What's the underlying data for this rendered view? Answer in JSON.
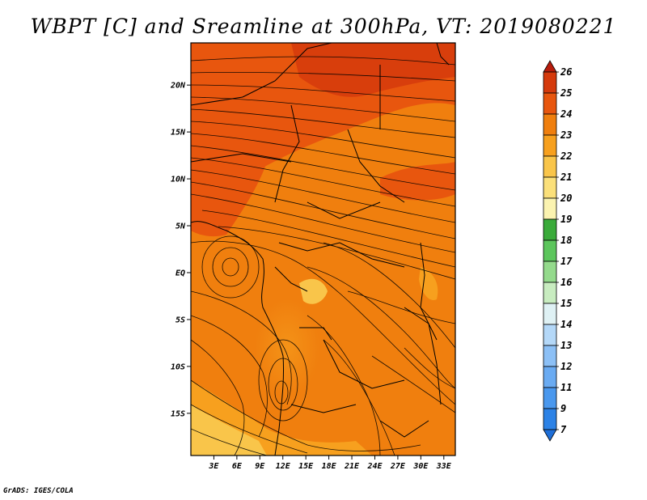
{
  "title": "WBPT [C] and Sreamline at 300hPa, VT: 2019080221",
  "credit": "GrADS: IGES/COLA",
  "map": {
    "lat_labels": [
      "20N",
      "15N",
      "10N",
      "5N",
      "EQ",
      "5S",
      "10S",
      "15S"
    ],
    "lat_values": [
      20,
      15,
      10,
      5,
      0,
      -5,
      -10,
      -15
    ],
    "lon_labels": [
      "3E",
      "6E",
      "9E",
      "12E",
      "15E",
      "18E",
      "21E",
      "24E",
      "27E",
      "30E",
      "33E"
    ],
    "lon_values": [
      3,
      6,
      9,
      12,
      15,
      18,
      21,
      24,
      27,
      30,
      33
    ],
    "lon_range": [
      0,
      34.5
    ],
    "lat_range": [
      -19.5,
      24.5
    ]
  },
  "colorbar": {
    "labels": [
      "7",
      "9",
      "11",
      "12",
      "13",
      "14",
      "15",
      "16",
      "17",
      "18",
      "19",
      "20",
      "21",
      "22",
      "23",
      "24",
      "25",
      "26"
    ],
    "colors": [
      "#1f6fd8",
      "#2c82e6",
      "#4a98ee",
      "#6aabf2",
      "#8cc0f6",
      "#b4d8f8",
      "#dff1f4",
      "#c8ecc0",
      "#94da8c",
      "#5cc65c",
      "#3aab3a",
      "#fbf3b0",
      "#fbe07a",
      "#f9c54a",
      "#f7a01e",
      "#f07f0e",
      "#e8560e",
      "#d53a0c",
      "#b71c0c"
    ]
  }
}
